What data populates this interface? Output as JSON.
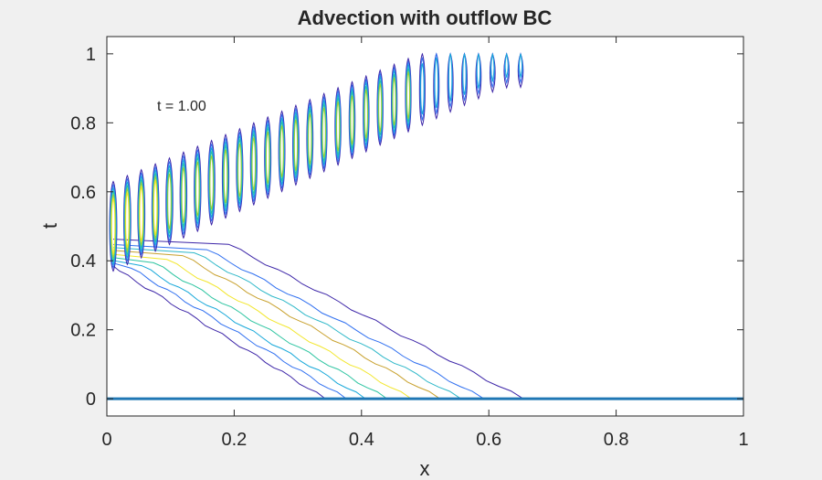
{
  "chart_data": {
    "type": "contour",
    "title": "Advection with outflow BC",
    "xlabel": "x",
    "ylabel": "t",
    "xlim": [
      0,
      1
    ],
    "ylim": [
      -0.05,
      1.05
    ],
    "xticks": [
      "0",
      "0.2",
      "0.4",
      "0.6",
      "0.8",
      "1"
    ],
    "xtick_values": [
      0,
      0.2,
      0.4,
      0.6,
      0.8,
      1
    ],
    "yticks": [
      "0",
      "0.2",
      "0.4",
      "0.6",
      "0.8",
      "1"
    ],
    "ytick_values": [
      0,
      0.2,
      0.4,
      0.6,
      0.8,
      1
    ],
    "annotation": "t = 1.00",
    "grid": false,
    "baseline": {
      "t": 0,
      "color": "#1f77b4"
    },
    "diagonal_contours": [
      {
        "x0": 0.343,
        "color": "#3d26a8"
      },
      {
        "x0": 0.376,
        "color": "#2f6ff0"
      },
      {
        "x0": 0.406,
        "color": "#17a8d9"
      },
      {
        "x0": 0.44,
        "color": "#2cc4a0"
      },
      {
        "x0": 0.478,
        "color": "#f2e62b"
      },
      {
        "x0": 0.523,
        "color": "#c8a12e"
      },
      {
        "x0": 0.556,
        "color": "#2fb8c9"
      },
      {
        "x0": 0.592,
        "color": "#2f6ff0"
      },
      {
        "x0": 0.654,
        "color": "#3d26a8"
      }
    ],
    "oscillation_band": {
      "ridge_count": 30,
      "x_start": 0.01,
      "x_end": 0.65,
      "ridge_x0": 0.21,
      "t_left": 0.5,
      "t_end": 1.0,
      "colors": [
        "#3d26a8",
        "#2f6ff0",
        "#17a8d9",
        "#2cc4a0",
        "#a3d134",
        "#f2e62b"
      ]
    }
  }
}
